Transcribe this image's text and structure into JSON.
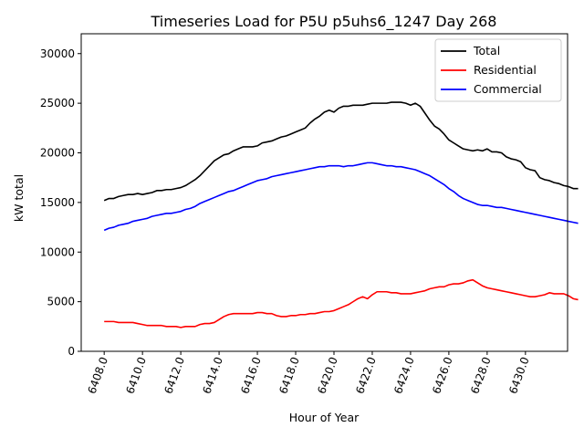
{
  "chart_data": {
    "type": "line",
    "title": "Timeseries Load for P5U p5uhs6_1247  Day 268",
    "xlabel": "Hour of Year",
    "ylabel": "kW total",
    "xlim": [
      6406.8,
      6432.2
    ],
    "ylim": [
      0,
      32000
    ],
    "xticks": [
      6408,
      6410,
      6412,
      6414,
      6416,
      6418,
      6420,
      6422,
      6424,
      6426,
      6428,
      6430
    ],
    "xtick_labels": [
      "6408.0",
      "6410.0",
      "6412.0",
      "6414.0",
      "6416.0",
      "6418.0",
      "6420.0",
      "6422.0",
      "6424.0",
      "6426.0",
      "6428.0",
      "6430.0"
    ],
    "yticks": [
      0,
      5000,
      10000,
      15000,
      20000,
      25000,
      30000
    ],
    "ytick_labels": [
      "0",
      "5000",
      "10000",
      "15000",
      "20000",
      "25000",
      "30000"
    ],
    "legend_position": "top-right",
    "x_start": 6408,
    "x_step": 0.25,
    "series": [
      {
        "name": "Total",
        "color": "#000000",
        "values": [
          15200,
          15400,
          15400,
          15600,
          15700,
          15800,
          15800,
          15900,
          15800,
          15900,
          16000,
          16200,
          16200,
          16300,
          16300,
          16400,
          16500,
          16700,
          17000,
          17300,
          17700,
          18200,
          18700,
          19200,
          19500,
          19800,
          19900,
          20200,
          20400,
          20600,
          20600,
          20600,
          20700,
          21000,
          21100,
          21200,
          21400,
          21600,
          21700,
          21900,
          22100,
          22300,
          22500,
          23000,
          23400,
          23700,
          24100,
          24300,
          24100,
          24500,
          24700,
          24700,
          24800,
          24800,
          24800,
          24900,
          25000,
          25000,
          25000,
          25000,
          25100,
          25100,
          25100,
          25000,
          24800,
          25000,
          24700,
          24000,
          23300,
          22700,
          22400,
          21900,
          21300,
          21000,
          20700,
          20400,
          20300,
          20200,
          20300,
          20200,
          20400,
          20100,
          20100,
          20000,
          19600,
          19400,
          19300,
          19100,
          18500,
          18300,
          18200,
          17500,
          17300,
          17200,
          17000,
          16900,
          16700,
          16600,
          16400,
          16400
        ]
      },
      {
        "name": "Residential",
        "color": "#ff0000",
        "values": [
          3000,
          3000,
          3000,
          2900,
          2900,
          2900,
          2900,
          2800,
          2700,
          2600,
          2600,
          2600,
          2600,
          2500,
          2500,
          2500,
          2400,
          2500,
          2500,
          2500,
          2700,
          2800,
          2800,
          2900,
          3200,
          3500,
          3700,
          3800,
          3800,
          3800,
          3800,
          3800,
          3900,
          3900,
          3800,
          3800,
          3600,
          3500,
          3500,
          3600,
          3600,
          3700,
          3700,
          3800,
          3800,
          3900,
          4000,
          4000,
          4100,
          4300,
          4500,
          4700,
          5000,
          5300,
          5500,
          5300,
          5700,
          6000,
          6000,
          6000,
          5900,
          5900,
          5800,
          5800,
          5800,
          5900,
          6000,
          6100,
          6300,
          6400,
          6500,
          6500,
          6700,
          6800,
          6800,
          6900,
          7100,
          7200,
          6900,
          6600,
          6400,
          6300,
          6200,
          6100,
          6000,
          5900,
          5800,
          5700,
          5600,
          5500,
          5500,
          5600,
          5700,
          5900,
          5800,
          5800,
          5800,
          5600,
          5300,
          5200
        ]
      },
      {
        "name": "Commercial",
        "color": "#0000ff",
        "values": [
          12200,
          12400,
          12500,
          12700,
          12800,
          12900,
          13100,
          13200,
          13300,
          13400,
          13600,
          13700,
          13800,
          13900,
          13900,
          14000,
          14100,
          14300,
          14400,
          14600,
          14900,
          15100,
          15300,
          15500,
          15700,
          15900,
          16100,
          16200,
          16400,
          16600,
          16800,
          17000,
          17200,
          17300,
          17400,
          17600,
          17700,
          17800,
          17900,
          18000,
          18100,
          18200,
          18300,
          18400,
          18500,
          18600,
          18600,
          18700,
          18700,
          18700,
          18600,
          18700,
          18700,
          18800,
          18900,
          19000,
          19000,
          18900,
          18800,
          18700,
          18700,
          18600,
          18600,
          18500,
          18400,
          18300,
          18100,
          17900,
          17700,
          17400,
          17100,
          16800,
          16400,
          16100,
          15700,
          15400,
          15200,
          15000,
          14800,
          14700,
          14700,
          14600,
          14500,
          14500,
          14400,
          14300,
          14200,
          14100,
          14000,
          13900,
          13800,
          13700,
          13600,
          13500,
          13400,
          13300,
          13200,
          13100,
          13000,
          12900
        ]
      }
    ]
  }
}
